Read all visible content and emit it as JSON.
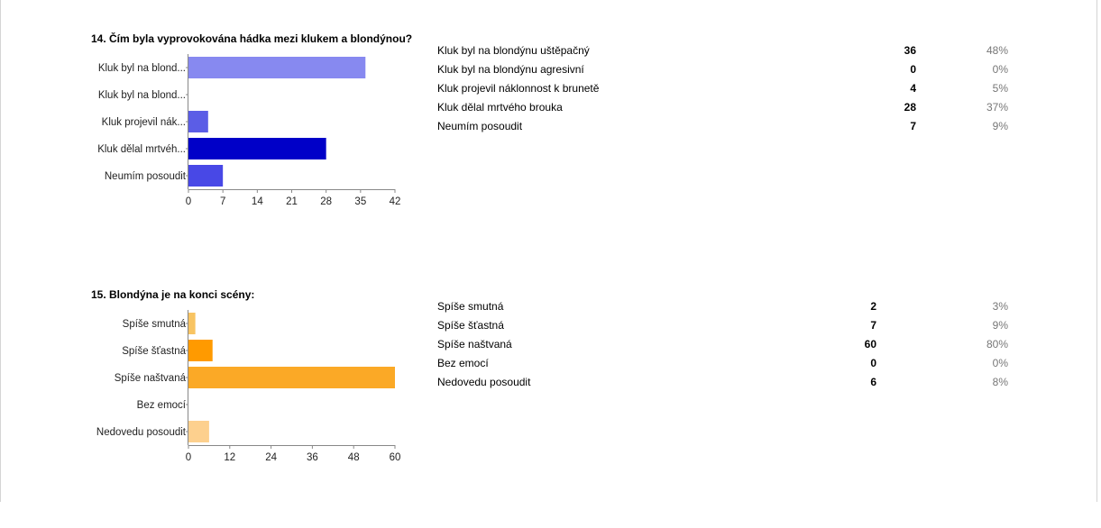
{
  "questions": [
    {
      "title": "14. Čím byla vyprovokována hádka mezi klukem a blondýnou?",
      "chart_data": {
        "type": "bar",
        "orientation": "horizontal",
        "categories": [
          "Kluk byl na blond...",
          "Kluk byl na blond...",
          "Kluk projevil nák...",
          "Kluk dělal mrtvéh...",
          "Neumím posoudit"
        ],
        "values": [
          36,
          0,
          4,
          28,
          7
        ],
        "xlim": [
          0,
          42
        ],
        "xticks": [
          "0",
          "7",
          "14",
          "21",
          "28",
          "35",
          "42"
        ],
        "bar_colors": [
          "#8789f0",
          "#6668ec",
          "#5b5de6",
          "#0000c8",
          "#4848e6"
        ],
        "grid": false,
        "title": "14. Čím byla vyprovokována hádka mezi klukem a blondýnou?",
        "xlabel": "",
        "ylabel": ""
      },
      "rows": [
        {
          "label": "Kluk byl na blondýnu uštěpačný",
          "count": "36",
          "percent": "48%"
        },
        {
          "label": "Kluk byl na blondýnu agresivní",
          "count": "0",
          "percent": "0%"
        },
        {
          "label": "Kluk projevil náklonnost k brunetě",
          "count": "4",
          "percent": "5%"
        },
        {
          "label": "Kluk dělal mrtvého brouka",
          "count": "28",
          "percent": "37%"
        },
        {
          "label": "Neumím posoudit",
          "count": "7",
          "percent": "9%"
        }
      ]
    },
    {
      "title": "15. Blondýna je na konci scény:",
      "chart_data": {
        "type": "bar",
        "orientation": "horizontal",
        "categories": [
          "Spíše smutná",
          "Spíše šťastná",
          "Spíše naštvaná",
          "Bez emocí",
          "Nedovedu posoudit"
        ],
        "values": [
          2,
          7,
          60,
          0,
          6
        ],
        "xlim": [
          0,
          60
        ],
        "xticks": [
          "0",
          "12",
          "24",
          "36",
          "48",
          "60"
        ],
        "bar_colors": [
          "#f8c462",
          "#ff9a00",
          "#fba926",
          "#f8c462",
          "#fdd08e"
        ],
        "grid": false,
        "title": "15. Blondýna je na konci scény:",
        "xlabel": "",
        "ylabel": ""
      },
      "rows": [
        {
          "label": "Spíše smutná",
          "count": "2",
          "percent": "3%"
        },
        {
          "label": "Spíše šťastná",
          "count": "7",
          "percent": "9%"
        },
        {
          "label": "Spíše naštvaná",
          "count": "60",
          "percent": "80%"
        },
        {
          "label": "Bez emocí",
          "count": "0",
          "percent": "0%"
        },
        {
          "label": "Nedovedu posoudit",
          "count": "6",
          "percent": "8%"
        }
      ]
    }
  ]
}
